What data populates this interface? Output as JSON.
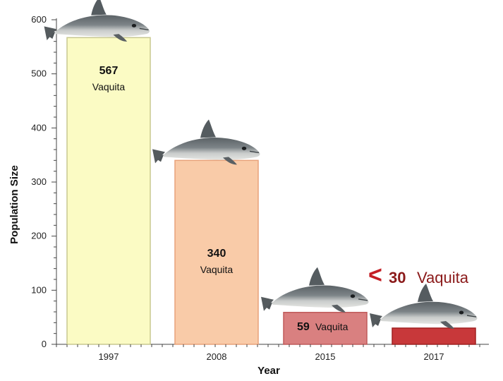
{
  "chart_data": {
    "type": "bar",
    "categories": [
      "1997",
      "2008",
      "2015",
      "2017"
    ],
    "values": [
      567,
      340,
      59,
      30
    ],
    "bar_colors": [
      "#fbfbc4",
      "#f9cba8",
      "#d98080",
      "#c8383a"
    ],
    "bar_stroke_colors": [
      "#c8c890",
      "#e8a27a",
      "#c05a5a",
      "#a02020"
    ],
    "data_labels": [
      {
        "number": "567",
        "unit": "Vaquita"
      },
      {
        "number": "340",
        "unit": "Vaquita"
      },
      {
        "number": "59",
        "unit": "Vaquita"
      }
    ],
    "annotation": {
      "symbol": "<",
      "number": "30",
      "unit": "Vaquita",
      "color": "#8b1a1a"
    },
    "xlabel": "Year",
    "ylabel": "Population Size",
    "ylim": [
      0,
      600
    ],
    "yticks": [
      0,
      100,
      200,
      300,
      400,
      500,
      600
    ],
    "grid": false,
    "legend": "none",
    "icon": "vaquita-porpoise-icon"
  }
}
